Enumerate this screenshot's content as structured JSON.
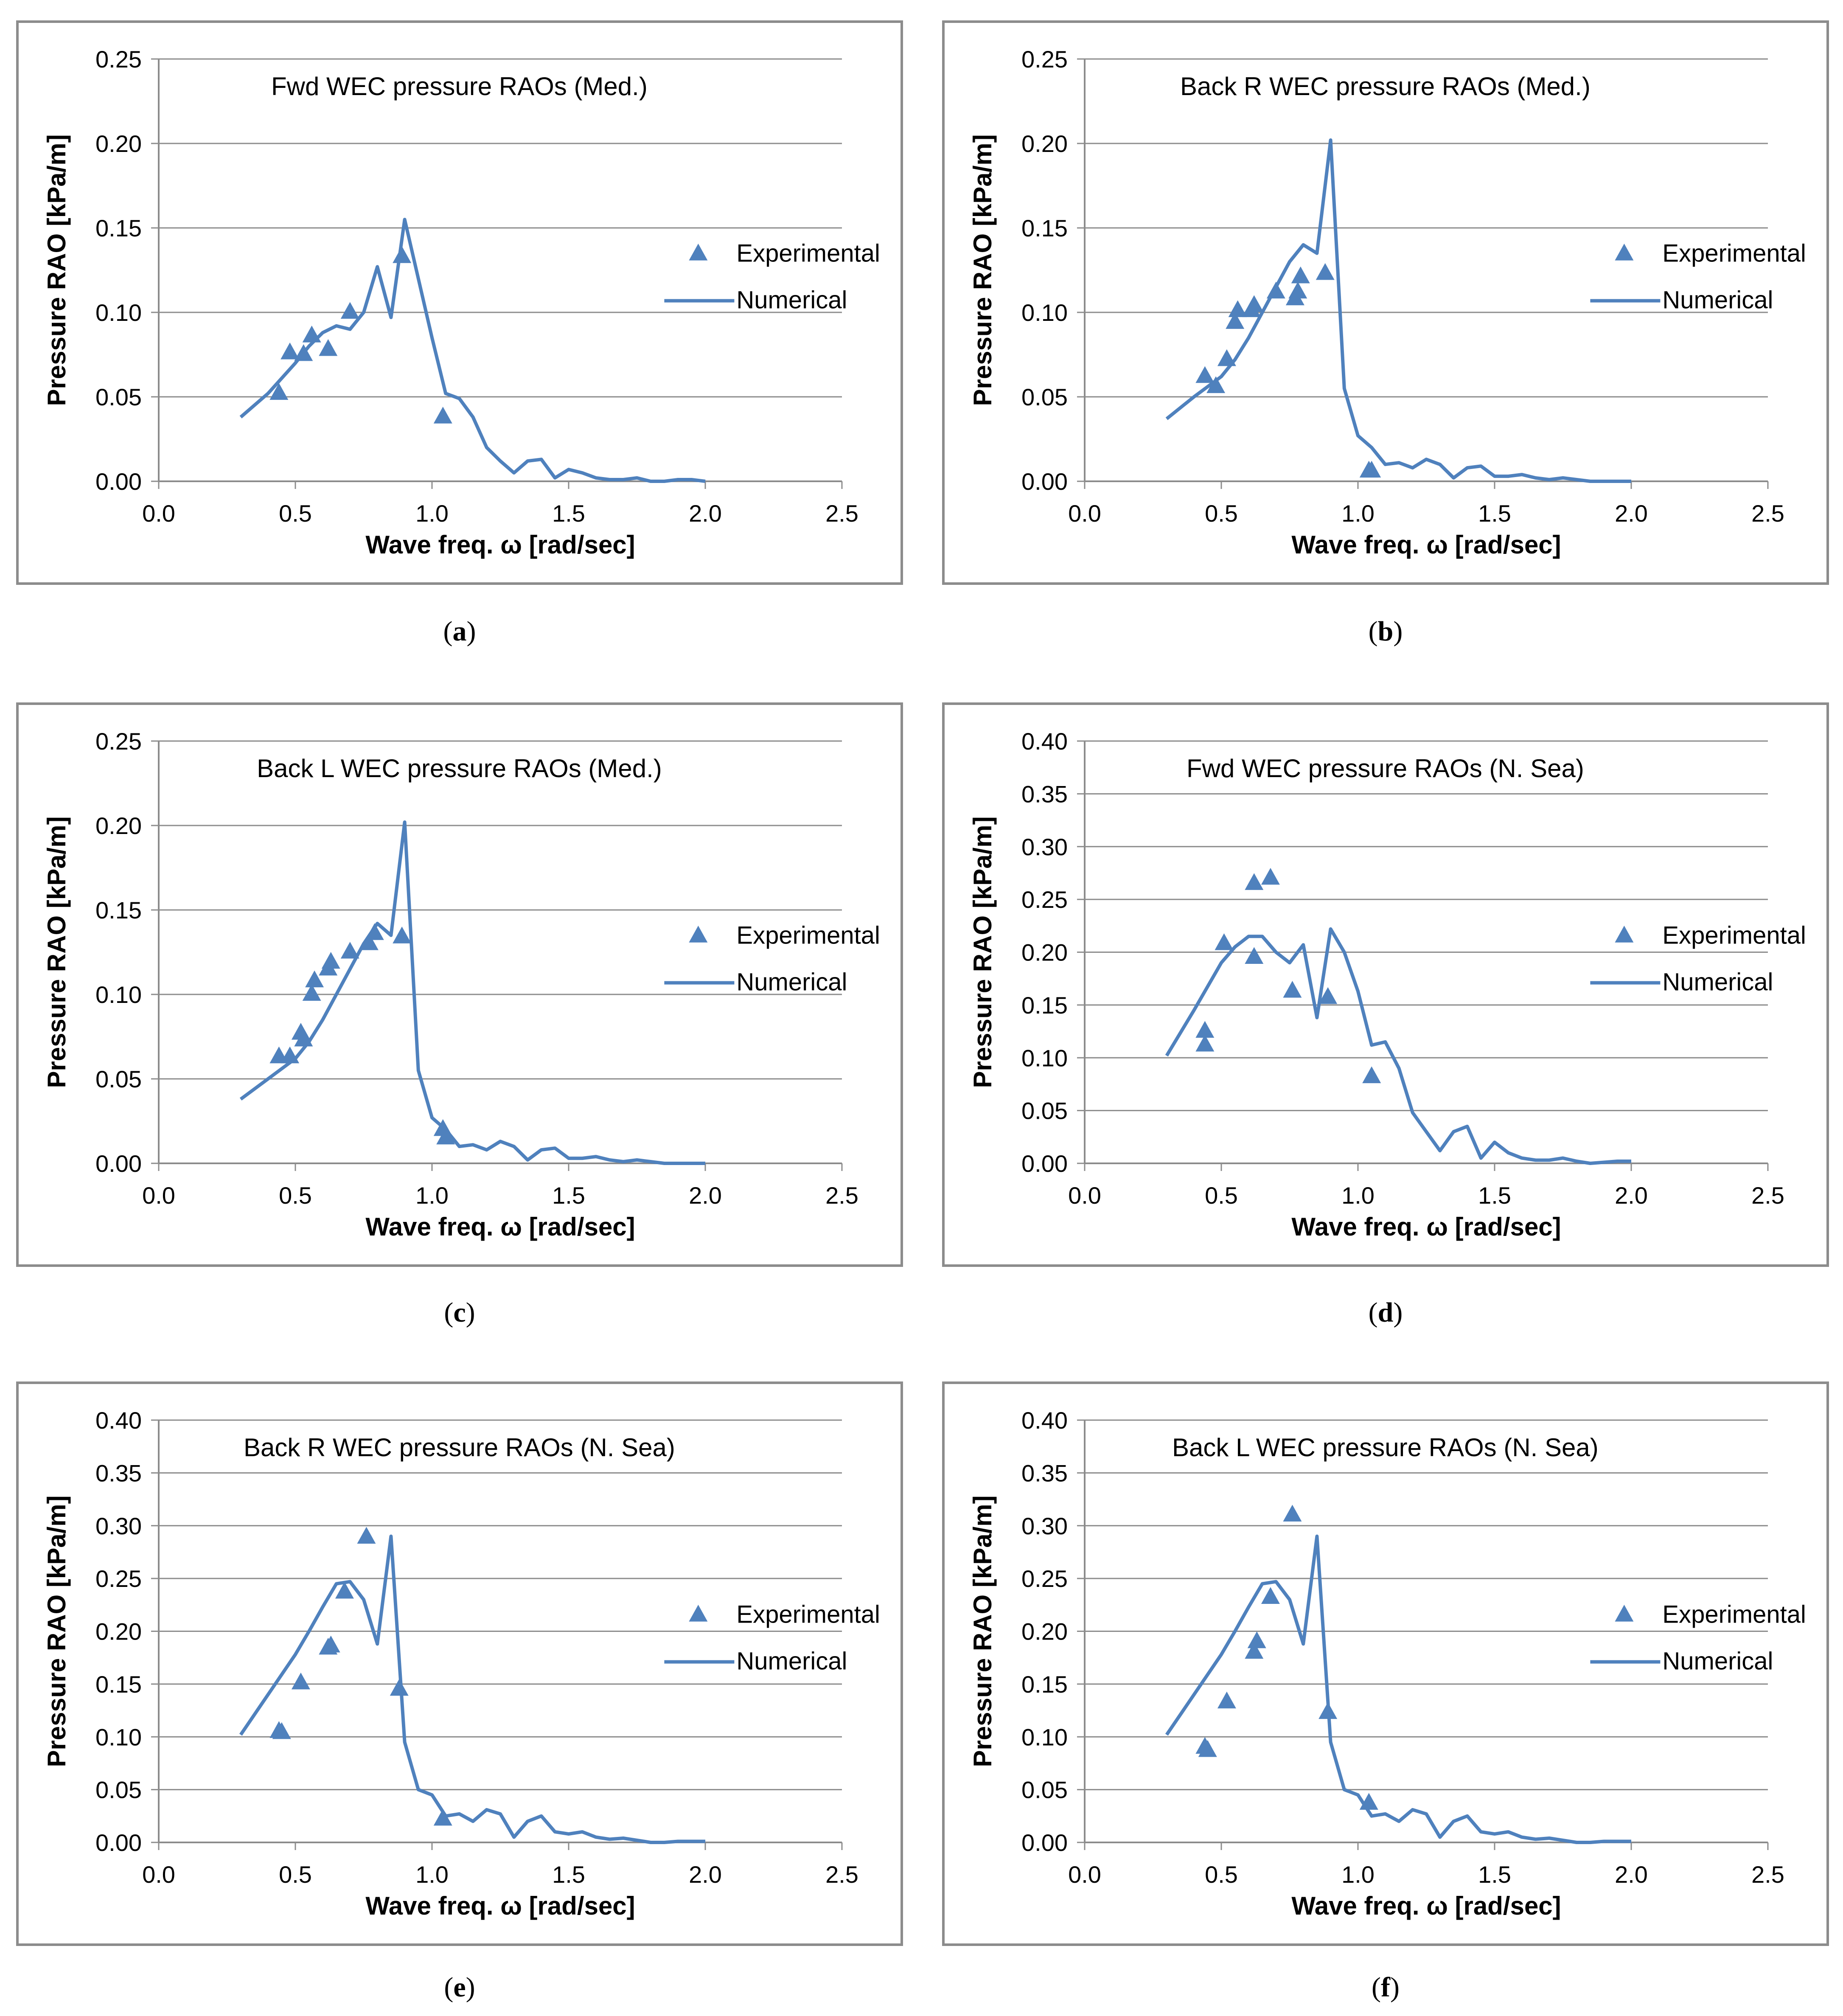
{
  "chart_data": [
    {
      "id": "a",
      "type": "line",
      "caption": "a",
      "title": "Fwd WEC pressure RAOs  (Med.)",
      "xlabel": "Wave freq. ω [rad/sec]",
      "ylabel": "Pressure RAO [kPa/m]",
      "xlim": [
        0,
        2.5
      ],
      "ylim": [
        0,
        0.25
      ],
      "xticks": [
        "0.0",
        "0.5",
        "1.0",
        "1.5",
        "2.0",
        "2.5"
      ],
      "yticks": [
        "0.00",
        "0.05",
        "0.10",
        "0.15",
        "0.20",
        "0.25"
      ],
      "legend": [
        "Experimental",
        "Numerical"
      ],
      "numerical": {
        "x": [
          0.3,
          0.4,
          0.5,
          0.55,
          0.6,
          0.65,
          0.7,
          0.75,
          0.8,
          0.85,
          0.9,
          0.95,
          1.0,
          1.05,
          1.1,
          1.15,
          1.2,
          1.25,
          1.3,
          1.35,
          1.4,
          1.45,
          1.5,
          1.55,
          1.6,
          1.65,
          1.7,
          1.75,
          1.8,
          1.85,
          1.9,
          1.95,
          2.0
        ],
        "y": [
          0.038,
          0.052,
          0.07,
          0.08,
          0.088,
          0.092,
          0.09,
          0.1,
          0.127,
          0.097,
          0.155,
          0.12,
          0.085,
          0.052,
          0.049,
          0.038,
          0.02,
          0.012,
          0.005,
          0.012,
          0.013,
          0.002,
          0.007,
          0.005,
          0.002,
          0.001,
          0.001,
          0.002,
          0.0,
          0.0,
          0.001,
          0.001,
          0.0
        ]
      },
      "experimental": {
        "x": [
          0.44,
          0.48,
          0.53,
          0.56,
          0.62,
          0.7,
          0.89,
          1.04
        ],
        "y": [
          0.052,
          0.076,
          0.075,
          0.086,
          0.078,
          0.1,
          0.133,
          0.038
        ]
      }
    },
    {
      "id": "b",
      "type": "line",
      "caption": "b",
      "title": "Back R WEC pressure RAOs  (Med.)",
      "xlabel": "Wave freq. ω [rad/sec]",
      "ylabel": "Pressure RAO [kPa/m]",
      "xlim": [
        0,
        2.5
      ],
      "ylim": [
        0,
        0.25
      ],
      "xticks": [
        "0.0",
        "0.5",
        "1.0",
        "1.5",
        "2.0",
        "2.5"
      ],
      "yticks": [
        "0.00",
        "0.05",
        "0.10",
        "0.15",
        "0.20",
        "0.25"
      ],
      "legend": [
        "Experimental",
        "Numerical"
      ],
      "numerical": {
        "x": [
          0.3,
          0.4,
          0.5,
          0.55,
          0.6,
          0.65,
          0.7,
          0.75,
          0.8,
          0.85,
          0.9,
          0.95,
          1.0,
          1.05,
          1.1,
          1.15,
          1.2,
          1.25,
          1.3,
          1.35,
          1.4,
          1.45,
          1.5,
          1.55,
          1.6,
          1.65,
          1.7,
          1.75,
          1.8,
          1.85,
          1.9,
          1.95,
          2.0
        ],
        "y": [
          0.037,
          0.05,
          0.062,
          0.072,
          0.085,
          0.1,
          0.115,
          0.13,
          0.14,
          0.135,
          0.202,
          0.055,
          0.027,
          0.02,
          0.01,
          0.011,
          0.008,
          0.013,
          0.01,
          0.002,
          0.008,
          0.009,
          0.003,
          0.003,
          0.004,
          0.002,
          0.001,
          0.002,
          0.001,
          0.0,
          0.0,
          0.0,
          0.0
        ]
      },
      "experimental": {
        "x": [
          0.44,
          0.48,
          0.52,
          0.55,
          0.56,
          0.61,
          0.62,
          0.7,
          0.77,
          0.78,
          0.79,
          0.88,
          1.04,
          1.05
        ],
        "y": [
          0.062,
          0.056,
          0.072,
          0.094,
          0.101,
          0.101,
          0.104,
          0.112,
          0.108,
          0.112,
          0.121,
          0.123,
          0.006,
          0.006
        ]
      }
    },
    {
      "id": "c",
      "type": "line",
      "caption": "c",
      "title": "Back L WEC pressure RAOs  (Med.)",
      "xlabel": "Wave freq. ω [rad/sec]",
      "ylabel": "Pressure RAO [kPa/m]",
      "xlim": [
        0,
        2.5
      ],
      "ylim": [
        0,
        0.25
      ],
      "xticks": [
        "0.0",
        "0.5",
        "1.0",
        "1.5",
        "2.0",
        "2.5"
      ],
      "yticks": [
        "0.00",
        "0.05",
        "0.10",
        "0.15",
        "0.20",
        "0.25"
      ],
      "legend": [
        "Experimental",
        "Numerical"
      ],
      "numerical": {
        "x": [
          0.3,
          0.4,
          0.5,
          0.55,
          0.6,
          0.65,
          0.7,
          0.75,
          0.8,
          0.85,
          0.9,
          0.95,
          1.0,
          1.05,
          1.1,
          1.15,
          1.2,
          1.25,
          1.3,
          1.35,
          1.4,
          1.45,
          1.5,
          1.55,
          1.6,
          1.65,
          1.7,
          1.75,
          1.8,
          1.85,
          1.9,
          1.95,
          2.0
        ],
        "y": [
          0.038,
          0.05,
          0.062,
          0.072,
          0.085,
          0.1,
          0.115,
          0.13,
          0.142,
          0.135,
          0.202,
          0.055,
          0.027,
          0.02,
          0.01,
          0.011,
          0.008,
          0.013,
          0.01,
          0.002,
          0.008,
          0.009,
          0.003,
          0.003,
          0.004,
          0.002,
          0.001,
          0.002,
          0.001,
          0.0,
          0.0,
          0.0,
          0.0
        ]
      },
      "experimental": {
        "x": [
          0.44,
          0.48,
          0.52,
          0.53,
          0.56,
          0.57,
          0.62,
          0.63,
          0.7,
          0.77,
          0.79,
          0.89,
          1.04,
          1.05
        ],
        "y": [
          0.063,
          0.063,
          0.077,
          0.073,
          0.1,
          0.108,
          0.115,
          0.119,
          0.125,
          0.13,
          0.136,
          0.134,
          0.02,
          0.015
        ]
      }
    },
    {
      "id": "d",
      "type": "line",
      "caption": "d",
      "title": "Fwd WEC pressure RAOs  (N. Sea)",
      "xlabel": "Wave freq. ω [rad/sec]",
      "ylabel": "Pressure RAO [kPa/m]",
      "xlim": [
        0,
        2.5
      ],
      "ylim": [
        0,
        0.4
      ],
      "xticks": [
        "0.0",
        "0.5",
        "1.0",
        "1.5",
        "2.0",
        "2.5"
      ],
      "yticks": [
        "0.00",
        "0.05",
        "0.10",
        "0.15",
        "0.20",
        "0.25",
        "0.30",
        "0.35",
        "0.40"
      ],
      "legend": [
        "Experimental",
        "Numerical"
      ],
      "numerical": {
        "x": [
          0.3,
          0.4,
          0.5,
          0.55,
          0.6,
          0.65,
          0.7,
          0.75,
          0.8,
          0.85,
          0.9,
          0.95,
          1.0,
          1.05,
          1.1,
          1.15,
          1.2,
          1.25,
          1.3,
          1.35,
          1.4,
          1.45,
          1.5,
          1.55,
          1.6,
          1.65,
          1.7,
          1.75,
          1.8,
          1.85,
          1.9,
          1.95,
          2.0
        ],
        "y": [
          0.102,
          0.145,
          0.19,
          0.205,
          0.215,
          0.215,
          0.2,
          0.19,
          0.207,
          0.138,
          0.222,
          0.2,
          0.163,
          0.112,
          0.115,
          0.09,
          0.048,
          0.03,
          0.012,
          0.03,
          0.035,
          0.005,
          0.02,
          0.01,
          0.005,
          0.003,
          0.003,
          0.005,
          0.002,
          0.0,
          0.001,
          0.002,
          0.002
        ]
      },
      "experimental": {
        "x": [
          0.44,
          0.44,
          0.51,
          0.62,
          0.62,
          0.68,
          0.76,
          0.89,
          1.05
        ],
        "y": [
          0.125,
          0.112,
          0.208,
          0.265,
          0.195,
          0.27,
          0.163,
          0.157,
          0.082
        ]
      }
    },
    {
      "id": "e",
      "type": "line",
      "caption": "e",
      "title": "Back R WEC pressure RAOs  (N. Sea)",
      "xlabel": "Wave freq. ω [rad/sec]",
      "ylabel": "Pressure RAO [kPa/m]",
      "xlim": [
        0,
        2.5
      ],
      "ylim": [
        0,
        0.4
      ],
      "xticks": [
        "0.0",
        "0.5",
        "1.0",
        "1.5",
        "2.0",
        "2.5"
      ],
      "yticks": [
        "0.00",
        "0.05",
        "0.10",
        "0.15",
        "0.20",
        "0.25",
        "0.30",
        "0.35",
        "0.40"
      ],
      "legend": [
        "Experimental",
        "Numerical"
      ],
      "numerical": {
        "x": [
          0.3,
          0.4,
          0.5,
          0.55,
          0.6,
          0.65,
          0.7,
          0.75,
          0.8,
          0.85,
          0.9,
          0.95,
          1.0,
          1.05,
          1.1,
          1.15,
          1.2,
          1.25,
          1.3,
          1.35,
          1.4,
          1.45,
          1.5,
          1.55,
          1.6,
          1.65,
          1.7,
          1.75,
          1.8,
          1.85,
          1.9,
          1.95,
          2.0
        ],
        "y": [
          0.102,
          0.14,
          0.178,
          0.2,
          0.223,
          0.245,
          0.247,
          0.23,
          0.188,
          0.29,
          0.095,
          0.05,
          0.045,
          0.025,
          0.027,
          0.02,
          0.031,
          0.027,
          0.005,
          0.02,
          0.025,
          0.01,
          0.008,
          0.01,
          0.005,
          0.003,
          0.004,
          0.002,
          0.0,
          0.0,
          0.001,
          0.001,
          0.001
        ]
      },
      "experimental": {
        "x": [
          0.44,
          0.45,
          0.52,
          0.62,
          0.63,
          0.68,
          0.76,
          0.88,
          1.04
        ],
        "y": [
          0.105,
          0.104,
          0.151,
          0.184,
          0.186,
          0.237,
          0.289,
          0.145,
          0.022
        ]
      }
    },
    {
      "id": "f",
      "type": "line",
      "caption": "f",
      "title": "Back L WEC pressure RAOs  (N. Sea)",
      "xlabel": "Wave freq. ω [rad/sec]",
      "ylabel": "Pressure RAO [kPa/m]",
      "xlim": [
        0,
        2.5
      ],
      "ylim": [
        0,
        0.4
      ],
      "xticks": [
        "0.0",
        "0.5",
        "1.0",
        "1.5",
        "2.0",
        "2.5"
      ],
      "yticks": [
        "0.00",
        "0.05",
        "0.10",
        "0.15",
        "0.20",
        "0.25",
        "0.30",
        "0.35",
        "0.40"
      ],
      "legend": [
        "Experimental",
        "Numerical"
      ],
      "numerical": {
        "x": [
          0.3,
          0.4,
          0.5,
          0.55,
          0.6,
          0.65,
          0.7,
          0.75,
          0.8,
          0.85,
          0.9,
          0.95,
          1.0,
          1.05,
          1.1,
          1.15,
          1.2,
          1.25,
          1.3,
          1.35,
          1.4,
          1.45,
          1.5,
          1.55,
          1.6,
          1.65,
          1.7,
          1.75,
          1.8,
          1.85,
          1.9,
          1.95,
          2.0
        ],
        "y": [
          0.102,
          0.14,
          0.178,
          0.2,
          0.223,
          0.245,
          0.247,
          0.23,
          0.188,
          0.29,
          0.095,
          0.05,
          0.045,
          0.025,
          0.027,
          0.02,
          0.031,
          0.027,
          0.005,
          0.02,
          0.025,
          0.01,
          0.008,
          0.01,
          0.005,
          0.003,
          0.004,
          0.002,
          0.0,
          0.0,
          0.001,
          0.001,
          0.001
        ]
      },
      "experimental": {
        "x": [
          0.44,
          0.45,
          0.52,
          0.62,
          0.63,
          0.68,
          0.76,
          0.89,
          1.04
        ],
        "y": [
          0.09,
          0.087,
          0.133,
          0.18,
          0.19,
          0.232,
          0.31,
          0.123,
          0.037
        ]
      }
    }
  ],
  "colors": {
    "series": "#4f81bd",
    "grid": "#8c8c8c",
    "axis": "#8c8c8c",
    "text": "#000000"
  }
}
